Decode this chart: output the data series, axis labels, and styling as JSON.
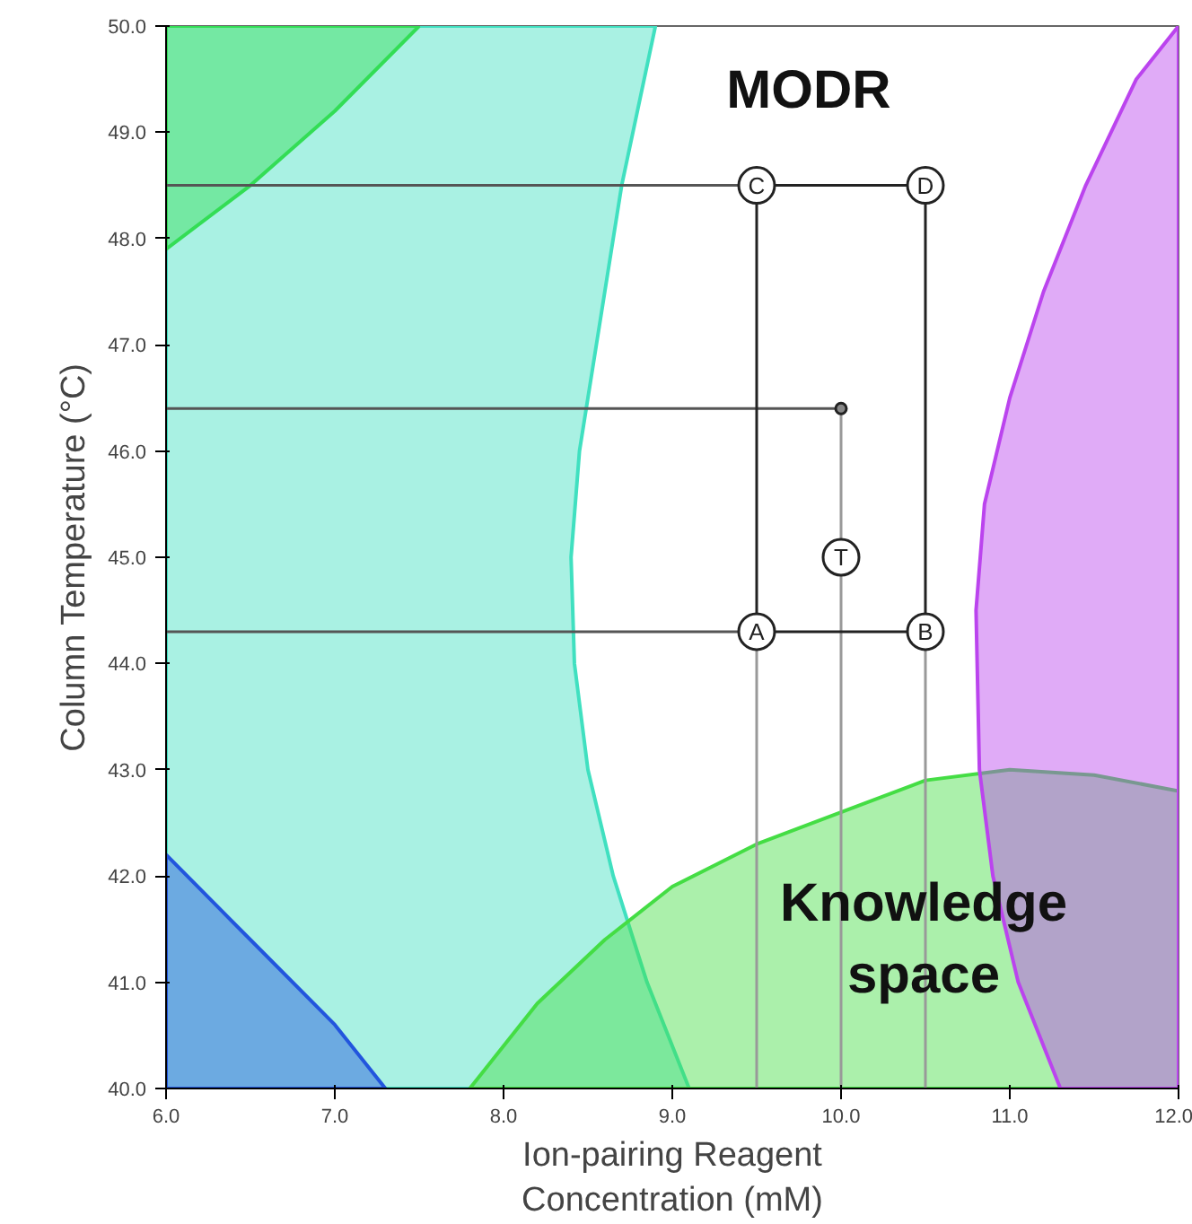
{
  "chart_data": {
    "type": "scatter",
    "xlabel": "Ion-pairing Reagent\nConcentration (mM)",
    "ylabel": "Column Temperature (°C)",
    "xlim": [
      6.0,
      12.0
    ],
    "ylim": [
      40.0,
      50.0
    ],
    "xticks": [
      {
        "value": 6,
        "label": "6.0"
      },
      {
        "value": 7,
        "label": "7.0"
      },
      {
        "value": 8,
        "label": "8.0"
      },
      {
        "value": 9,
        "label": "9.0"
      },
      {
        "value": 10,
        "label": "10.0"
      },
      {
        "value": 11,
        "label": "11.0"
      },
      {
        "value": 12,
        "label": "12.0"
      }
    ],
    "yticks": [
      {
        "value": 40,
        "label": "40.0"
      },
      {
        "value": 41,
        "label": "41.0"
      },
      {
        "value": 42,
        "label": "42.0"
      },
      {
        "value": 43,
        "label": "43.0"
      },
      {
        "value": 44,
        "label": "44.0"
      },
      {
        "value": 45,
        "label": "45.0"
      },
      {
        "value": 46,
        "label": "46.0"
      },
      {
        "value": 47,
        "label": "47.0"
      },
      {
        "value": 48,
        "label": "48.0"
      },
      {
        "value": 49,
        "label": "49.0"
      },
      {
        "value": 50,
        "label": "50.0"
      }
    ],
    "grid": false,
    "series": [
      {
        "type": "area",
        "color": "#40e0c0",
        "x": [
          6.0,
          8.9,
          8.7,
          8.55,
          8.45,
          8.4,
          8.42,
          8.5,
          8.65,
          8.85,
          9.1,
          6.0
        ],
        "values": [
          50.0,
          50.0,
          48.5,
          47.0,
          46.0,
          45.0,
          44.0,
          43.0,
          42.0,
          41.0,
          40.0,
          40.0
        ]
      },
      {
        "type": "area",
        "color": "#33dd55",
        "x": [
          6.0,
          6.5,
          7.0,
          7.5,
          6.0
        ],
        "values": [
          47.9,
          48.5,
          49.2,
          50.0,
          50.0
        ]
      },
      {
        "type": "area",
        "color": "#2255dd",
        "x": [
          6.0,
          6.5,
          7.0,
          7.3,
          6.0
        ],
        "values": [
          42.2,
          41.4,
          40.6,
          40.0,
          40.0
        ]
      },
      {
        "type": "area",
        "color": "#44dd44",
        "x": [
          7.8,
          8.2,
          8.6,
          9.0,
          9.5,
          10.0,
          10.5,
          11.0,
          11.5,
          12.0,
          12.0
        ],
        "values": [
          40.0,
          40.8,
          41.4,
          41.9,
          42.3,
          42.6,
          42.9,
          43.0,
          42.95,
          42.8,
          40.0
        ]
      },
      {
        "type": "area",
        "color": "#bb44ee",
        "x": [
          12.0,
          11.75,
          11.45,
          11.2,
          11.0,
          10.85,
          10.8,
          10.82,
          10.9,
          11.05,
          11.3,
          12.0
        ],
        "values": [
          50.0,
          49.5,
          48.5,
          47.5,
          46.5,
          45.5,
          44.5,
          43.0,
          42.0,
          41.0,
          40.0,
          40.0
        ]
      },
      {
        "type": "line",
        "color": "#555555",
        "x": [
          6.0,
          9.5
        ],
        "values": [
          48.5,
          48.5
        ]
      },
      {
        "type": "line",
        "color": "#555555",
        "x": [
          6.0,
          10.0
        ],
        "values": [
          46.4,
          46.4
        ]
      },
      {
        "type": "line",
        "color": "#555555",
        "x": [
          6.0,
          9.5
        ],
        "values": [
          44.3,
          44.3
        ]
      },
      {
        "type": "line",
        "color": "#999999",
        "x": [
          9.5,
          9.5
        ],
        "values": [
          40.0,
          44.3
        ]
      },
      {
        "type": "line",
        "color": "#999999",
        "x": [
          10.5,
          10.5
        ],
        "values": [
          40.0,
          44.3
        ]
      },
      {
        "type": "line",
        "color": "#999999",
        "x": [
          10.0,
          10.0
        ],
        "values": [
          40.0,
          46.4
        ]
      },
      {
        "type": "line",
        "color": "#222222",
        "x": [
          9.5,
          9.5
        ],
        "values": [
          44.3,
          48.5
        ]
      },
      {
        "type": "line",
        "color": "#222222",
        "x": [
          10.5,
          10.5
        ],
        "values": [
          44.3,
          48.5
        ]
      },
      {
        "type": "line",
        "color": "#222222",
        "x": [
          9.5,
          10.5
        ],
        "values": [
          44.3,
          44.3
        ]
      },
      {
        "type": "line",
        "color": "#222222",
        "x": [
          9.5,
          10.5
        ],
        "values": [
          48.5,
          48.5
        ]
      },
      {
        "color": "#888888",
        "marker": "circle",
        "x": [
          10.0
        ],
        "values": [
          46.4
        ]
      },
      {
        "color": "#ffffff",
        "marker": "circle",
        "x": [
          9.5,
          10.5,
          9.5,
          10.5,
          10.0
        ],
        "values": [
          44.3,
          44.3,
          48.5,
          48.5,
          45.0
        ],
        "value_labels": [
          "A",
          "B",
          "C",
          "D",
          "T"
        ]
      }
    ],
    "annotations": [
      "MODR",
      "Knowledge\nspace"
    ]
  }
}
